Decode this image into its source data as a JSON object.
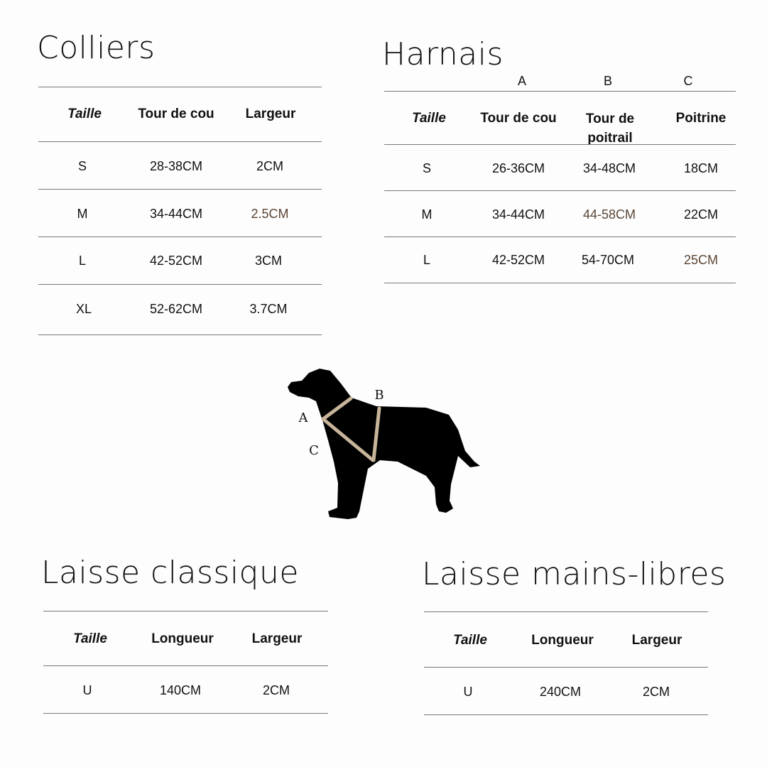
{
  "colliers": {
    "title": "Colliers",
    "headers": [
      "Taille",
      "Tour de cou",
      "Largeur"
    ],
    "rows": [
      [
        "S",
        "28-38CM",
        "2CM"
      ],
      [
        "M",
        "34-44CM",
        "2.5CM"
      ],
      [
        "L",
        "42-52CM",
        "3CM"
      ],
      [
        "XL",
        "52-62CM",
        "3.7CM"
      ]
    ]
  },
  "harnais": {
    "title": "Harnais",
    "letters": [
      "A",
      "B",
      "C"
    ],
    "headers": [
      "Taille",
      "Tour de cou",
      "Tour de\npoitrail",
      "Poitrine"
    ],
    "rows": [
      [
        "S",
        "26-36CM",
        "34-48CM",
        "18CM"
      ],
      [
        "M",
        "34-44CM",
        "44-58CM",
        "22CM"
      ],
      [
        "L",
        "42-52CM",
        "54-70CM",
        "25CM"
      ]
    ]
  },
  "diagram": {
    "labels": [
      "A",
      "B",
      "C"
    ],
    "harness_color": "#c8b49a"
  },
  "laisse_classique": {
    "title": "Laisse classique",
    "headers": [
      "Taille",
      "Longueur",
      "Largeur"
    ],
    "rows": [
      [
        "U",
        "140CM",
        "2CM"
      ]
    ]
  },
  "laisse_mains_libres": {
    "title": "Laisse mains-libres",
    "headers": [
      "Taille",
      "Longueur",
      "Largeur"
    ],
    "rows": [
      [
        "U",
        "240CM",
        "2CM"
      ]
    ]
  },
  "colors": {
    "text": "#111111",
    "accent_value": "#5b4535",
    "rule": "#777777"
  }
}
